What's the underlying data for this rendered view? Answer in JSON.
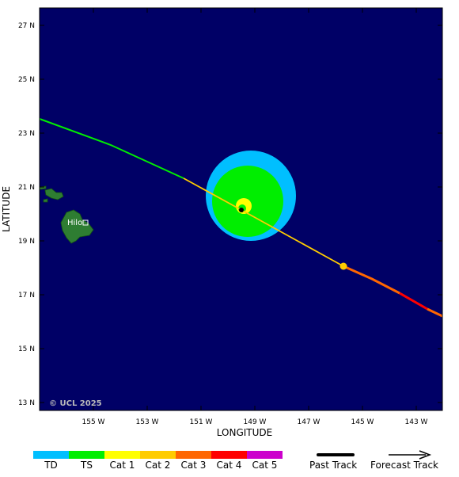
{
  "map": {
    "background_color": "#000066",
    "watermark": "© UCL 2025",
    "city_label": "Hilo",
    "x_axis_title": "LONGITUDE",
    "y_axis_title": "LATITUDE",
    "lon_ticks": [
      {
        "value": -155,
        "label": "155 W"
      },
      {
        "value": -153,
        "label": "153 W"
      },
      {
        "value": -151,
        "label": "151 W"
      },
      {
        "value": -149,
        "label": "149 W"
      },
      {
        "value": -147,
        "label": "147 W"
      },
      {
        "value": -145,
        "label": "145 W"
      },
      {
        "value": -143,
        "label": "143 W"
      }
    ],
    "lat_ticks": [
      {
        "value": 27,
        "label": "27 N"
      },
      {
        "value": 25,
        "label": "25 N"
      },
      {
        "value": 23,
        "label": "23 N"
      },
      {
        "value": 21,
        "label": "21 N"
      },
      {
        "value": 19,
        "label": "19 N"
      },
      {
        "value": 17,
        "label": "17 N"
      },
      {
        "value": 15,
        "label": "15 N"
      },
      {
        "value": 13,
        "label": "13 N"
      }
    ]
  },
  "legend": {
    "categories": [
      {
        "label": "TD",
        "color": "#00bfff"
      },
      {
        "label": "TS",
        "color": "#00ee00"
      },
      {
        "label": "Cat 1",
        "color": "#ffff00"
      },
      {
        "label": "Cat 2",
        "color": "#ffcc00"
      },
      {
        "label": "Cat 3",
        "color": "#ff6600"
      },
      {
        "label": "Cat 4",
        "color": "#ff0000"
      },
      {
        "label": "Cat 5",
        "color": "#cc00cc"
      }
    ],
    "past_track_label": "Past Track",
    "forecast_track_label": "Forecast Track"
  }
}
